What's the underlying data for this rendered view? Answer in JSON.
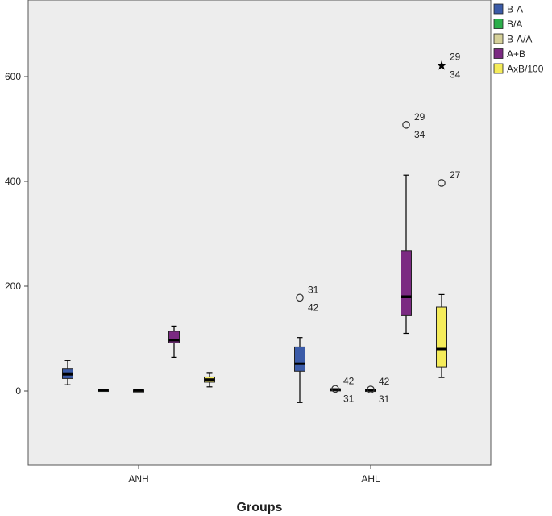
{
  "chart_data": {
    "type": "boxplot",
    "xlabel": "Groups",
    "ylabel": "",
    "ylim": [
      -145,
      720
    ],
    "yticks": [
      0,
      200,
      400,
      600
    ],
    "grid": false,
    "legend_position": "right",
    "categories": [
      "ANH",
      "AHL"
    ],
    "series": [
      {
        "name": "B-A",
        "color": "#3b5ba8",
        "boxes": [
          {
            "category": "ANH",
            "min": 12,
            "q1": 24,
            "median": 32,
            "q3": 42,
            "max": 58,
            "outliers": []
          },
          {
            "category": "AHL",
            "min": -22,
            "q1": 38,
            "median": 52,
            "q3": 84,
            "max": 102,
            "outliers": [
              {
                "value": 178,
                "marker": "circle",
                "labels": [
                  "31",
                  "42"
                ]
              }
            ]
          }
        ]
      },
      {
        "name": "B/A",
        "color": "#2cae4b",
        "boxes": [
          {
            "category": "ANH",
            "min": 1,
            "q1": 1,
            "median": 2,
            "q3": 3,
            "max": 3,
            "outliers": []
          },
          {
            "category": "AHL",
            "min": 2,
            "q1": 2,
            "median": 3,
            "q3": 4,
            "max": 4,
            "outliers": [
              {
                "value": 4,
                "marker": "circle",
                "labels": [
                  "42",
                  "31"
                ]
              }
            ]
          }
        ]
      },
      {
        "name": "B-A/A",
        "color": "#d6d19a",
        "boxes": [
          {
            "category": "ANH",
            "min": 1,
            "q1": 1,
            "median": 1,
            "q3": 2,
            "max": 2,
            "outliers": []
          },
          {
            "category": "AHL",
            "min": 1,
            "q1": 1,
            "median": 2,
            "q3": 3,
            "max": 3,
            "outliers": [
              {
                "value": 3,
                "marker": "circle",
                "labels": [
                  "42",
                  "31"
                ]
              }
            ]
          }
        ]
      },
      {
        "name": "A+B",
        "color": "#7b2a82",
        "boxes": [
          {
            "category": "ANH",
            "min": 64,
            "q1": 92,
            "median": 97,
            "q3": 114,
            "max": 124,
            "outliers": []
          },
          {
            "category": "AHL",
            "min": 110,
            "q1": 144,
            "median": 180,
            "q3": 268,
            "max": 412,
            "outliers": [
              {
                "value": 508,
                "marker": "circle",
                "labels": [
                  "29",
                  "34"
                ]
              }
            ]
          }
        ]
      },
      {
        "name": "AxB/100",
        "color": "#f5ec5a",
        "boxes": [
          {
            "category": "ANH",
            "min": 8,
            "q1": 17,
            "median": 22,
            "q3": 27,
            "max": 34,
            "outliers": []
          },
          {
            "category": "AHL",
            "min": 26,
            "q1": 46,
            "median": 80,
            "q3": 160,
            "max": 184,
            "outliers": [
              {
                "value": 397,
                "marker": "circle",
                "labels": [
                  "27"
                ]
              },
              {
                "value": 622,
                "marker": "star",
                "labels": [
                  "29",
                  "34"
                ]
              }
            ]
          }
        ]
      }
    ]
  }
}
